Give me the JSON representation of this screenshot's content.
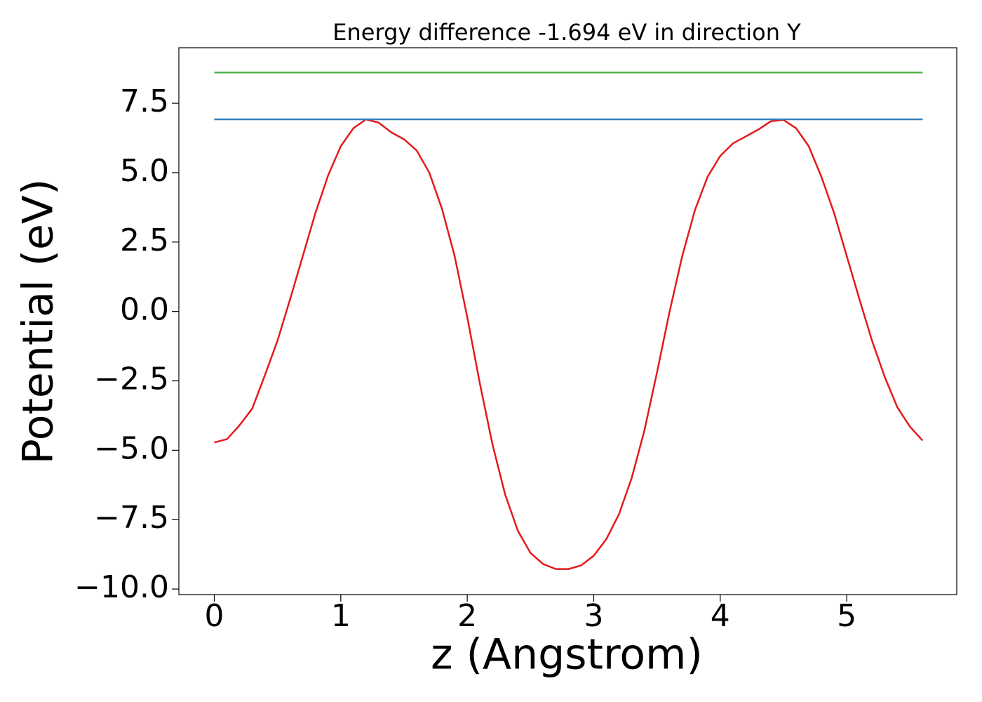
{
  "chart_data": {
    "type": "line",
    "title": "Energy difference -1.694 eV in direction Y",
    "xlabel": "z (Angstrom)",
    "ylabel": "Potential (eV)",
    "xlim": [
      -0.28,
      5.87
    ],
    "ylim": [
      -10.2,
      9.5
    ],
    "xticks": [
      0,
      1,
      2,
      3,
      4,
      5
    ],
    "yticks": [
      {
        "value": -10,
        "label": "−10.0"
      },
      {
        "value": -7.5,
        "label": "−7.5"
      },
      {
        "value": -5,
        "label": "−5.0"
      },
      {
        "value": -2.5,
        "label": "−2.5"
      },
      {
        "value": 0,
        "label": "0.0"
      },
      2.5,
      {
        "value": 5,
        "label": "5.0"
      },
      7.5
    ],
    "grid": false,
    "series": [
      {
        "color": "#e41a1c",
        "x": [
          0,
          0.1,
          0.2,
          0.3,
          0.4,
          0.5,
          0.6,
          0.7,
          0.8,
          0.9,
          1,
          1.1,
          1.2,
          1.3,
          1.4,
          1.5,
          1.6,
          1.7,
          1.8,
          1.9,
          2,
          2.1,
          2.2,
          2.3,
          2.4,
          2.5,
          2.6,
          2.7,
          2.8,
          2.9,
          3,
          3.1,
          3.2,
          3.3,
          3.4,
          3.5,
          3.6,
          3.7,
          3.8,
          3.9,
          4,
          4.1,
          4.2,
          4.3,
          4.4,
          4.5,
          4.6,
          4.7,
          4.8,
          4.9,
          5,
          5.1,
          5.2,
          5.3,
          5.4,
          5.5,
          5.6
        ],
        "values": [
          -4.72,
          -4.6,
          -4.1,
          -3.5,
          -2.3,
          -1.05,
          0.45,
          2.0,
          3.55,
          4.9,
          5.95,
          6.6,
          6.92,
          6.8,
          6.45,
          6.2,
          5.8,
          5.0,
          3.7,
          2.0,
          -0.2,
          -2.6,
          -4.8,
          -6.6,
          -7.9,
          -8.7,
          -9.1,
          -9.28,
          -9.28,
          -9.15,
          -8.8,
          -8.2,
          -7.3,
          -6.0,
          -4.3,
          -2.2,
          0.0,
          2.0,
          3.65,
          4.85,
          5.6,
          6.05,
          6.3,
          6.55,
          6.85,
          6.9,
          6.6,
          5.95,
          4.85,
          3.55,
          2.0,
          0.45,
          -1.05,
          -2.35,
          -3.45,
          -4.15,
          -4.65
        ]
      },
      {
        "color": "#377eb8",
        "x": [
          0,
          5.6
        ],
        "values": [
          6.92,
          6.92
        ]
      },
      {
        "color": "#4daf4a",
        "x": [
          0,
          5.6
        ],
        "values": [
          8.61,
          8.61
        ]
      }
    ]
  }
}
